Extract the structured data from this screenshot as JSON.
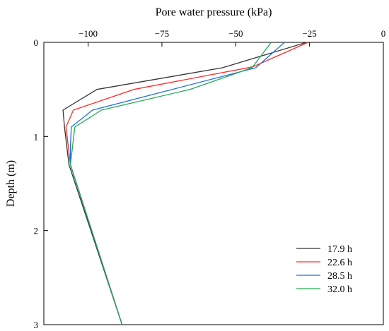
{
  "chart_data": {
    "type": "line",
    "title": "",
    "xlabel": "Pore water pressure (kPa)",
    "ylabel": "Depth (m)",
    "xlim": [
      -115,
      0
    ],
    "ylim": [
      0,
      3
    ],
    "y_inverted": true,
    "x_axis_position": "top",
    "grid": false,
    "legend_position": "bottom-right",
    "x_ticks": [
      -100,
      -75,
      -50,
      -25,
      0
    ],
    "x_tick_labels": [
      "−100",
      "−75",
      "−50",
      "−25",
      "0"
    ],
    "y_ticks": [
      0,
      1,
      2,
      3
    ],
    "y_tick_labels": [
      "0",
      "1",
      "2",
      "3"
    ],
    "series": [
      {
        "name": "17.9 h",
        "color": "#333333",
        "x": [
          -26,
          -54.5,
          -97,
          -108.5,
          -108,
          -106.5,
          -88.5
        ],
        "y": [
          0,
          0.27,
          0.5,
          0.72,
          0.9,
          1.3,
          3
        ]
      },
      {
        "name": "22.6 h",
        "color": "#ff2a2a",
        "x": [
          -25.5,
          -44.2,
          -84.5,
          -105,
          -107.5,
          -106,
          -88.5
        ],
        "y": [
          0,
          0.26,
          0.5,
          0.72,
          0.9,
          1.3,
          3
        ]
      },
      {
        "name": "28.5 h",
        "color": "#1f6fdf",
        "x": [
          -33.5,
          -43.2,
          -98.5,
          -105.7,
          -106,
          -106,
          -88.5
        ],
        "y": [
          0,
          0.27,
          0.72,
          0.9,
          1.1,
          1.3,
          3
        ]
      },
      {
        "name": "32.0 h",
        "color": "#22aa55",
        "x": [
          -38,
          -44.5,
          -65.5,
          -95.5,
          -104.5,
          -106,
          -88.5
        ],
        "y": [
          0,
          0.27,
          0.5,
          0.72,
          0.9,
          1.3,
          3
        ]
      }
    ]
  }
}
